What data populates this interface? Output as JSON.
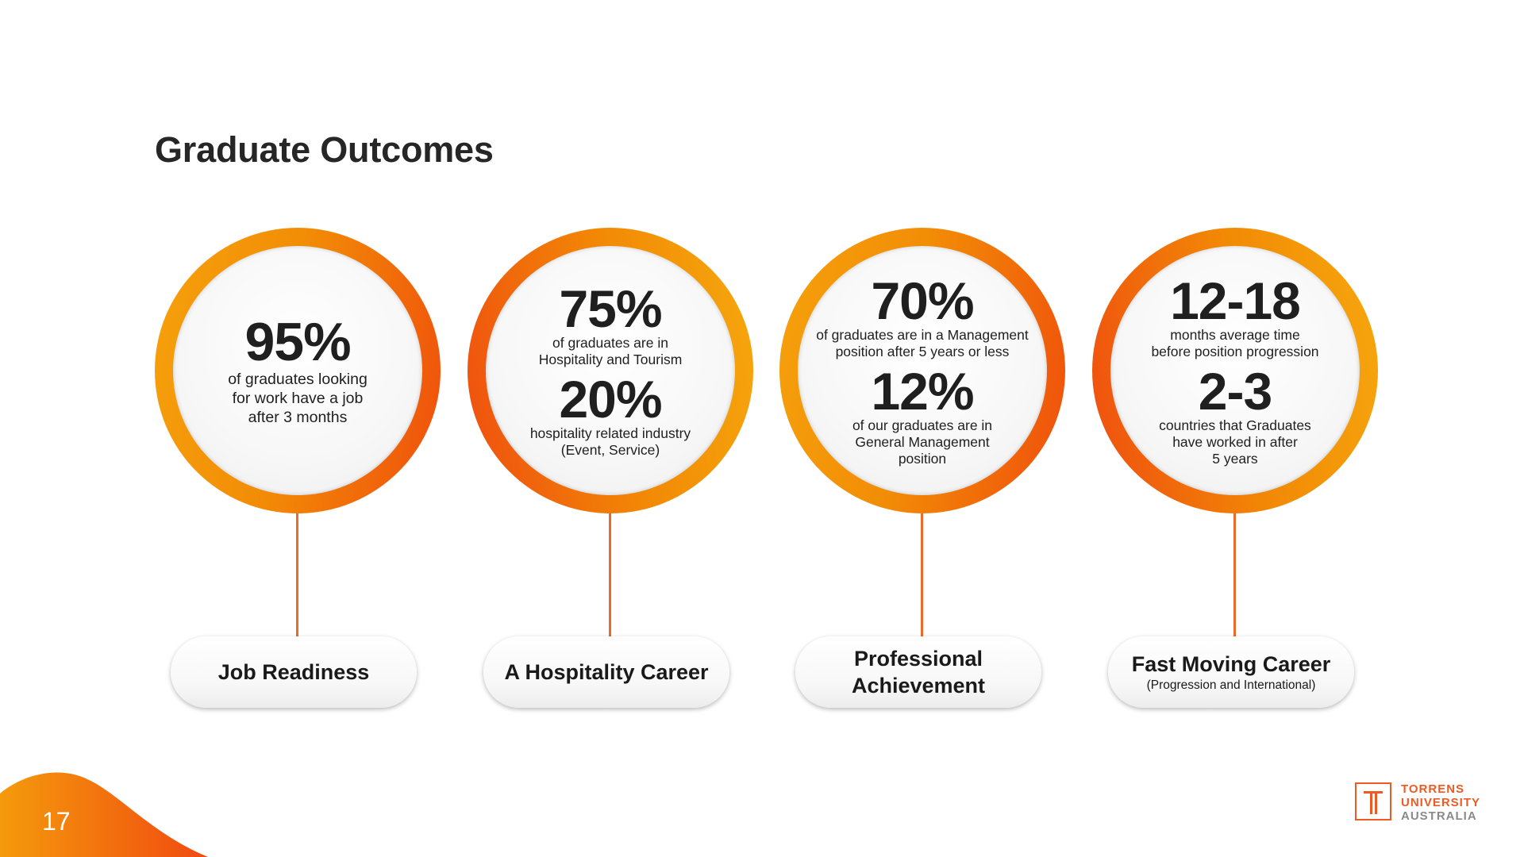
{
  "title": "Graduate Outcomes",
  "page_number": "17",
  "brand": {
    "accent": "#ee5a23",
    "ring_orange": "#f28d06",
    "ring_red": "#f04e0c",
    "logo_lines": [
      "TORRENS",
      "UNIVERSITY",
      "AUSTRALIA"
    ]
  },
  "columns": [
    {
      "stats": [
        {
          "value": "95%",
          "desc": "of graduates looking\nfor work have a job\nafter 3 months"
        }
      ],
      "pill_title": "Job Readiness",
      "pill_sub": ""
    },
    {
      "stats": [
        {
          "value": "75%",
          "desc": "of graduates are in\nHospitality and Tourism"
        },
        {
          "value": "20%",
          "desc": "hospitality related industry\n(Event, Service)"
        }
      ],
      "pill_title": "A Hospitality Career",
      "pill_sub": ""
    },
    {
      "stats": [
        {
          "value": "70%",
          "desc": "of graduates are in a Management\nposition after 5 years or less"
        },
        {
          "value": "12%",
          "desc": "of our graduates are in\nGeneral Management\nposition"
        }
      ],
      "pill_title": "Professional\nAchievement",
      "pill_sub": ""
    },
    {
      "stats": [
        {
          "value": "12-18",
          "desc": "months average time\nbefore position progression"
        },
        {
          "value": "2-3",
          "desc": "countries that Graduates\nhave worked in after\n5 years"
        }
      ],
      "pill_title": "Fast Moving Career",
      "pill_sub": "(Progression and International)"
    }
  ]
}
